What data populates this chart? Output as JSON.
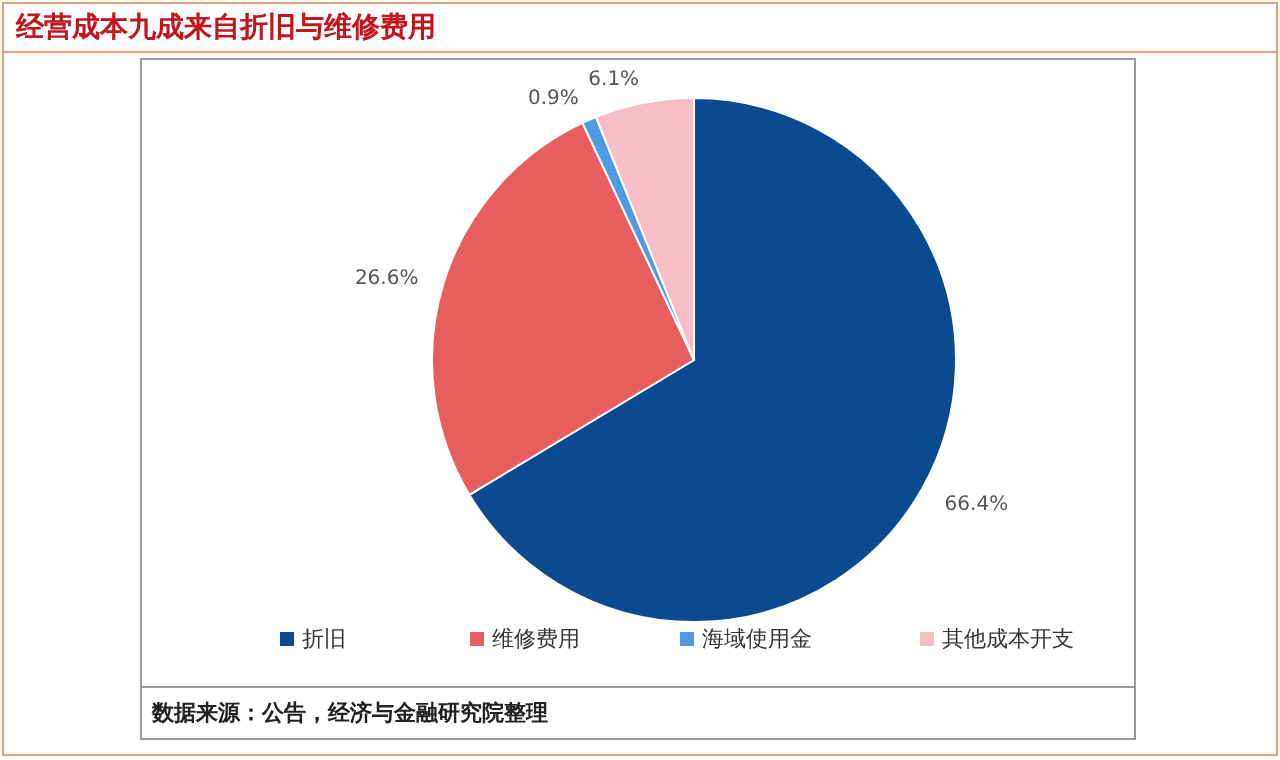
{
  "chart_data": {
    "type": "pie",
    "title": "经营成本九成来自折旧与维修费用",
    "categories": [
      "折旧",
      "维修费用",
      "海域使用金",
      "其他成本开支"
    ],
    "values": [
      66.4,
      26.6,
      0.9,
      6.1
    ],
    "value_labels": [
      "66.4%",
      "26.6%",
      "0.9%",
      "6.1%"
    ],
    "colors": [
      "#0b4a8e",
      "#e85d5d",
      "#4f9ae0",
      "#f6bcc8"
    ],
    "legend": "bottom",
    "annotations": [
      "数据来源：公告，经济与金融研究院整理"
    ]
  }
}
